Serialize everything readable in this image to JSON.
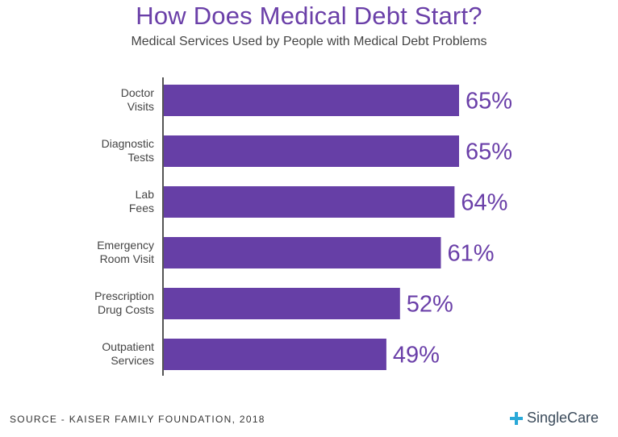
{
  "header": {
    "title": "How Does Medical Debt Start?",
    "subtitle": "Medical Services Used by People with Medical Debt Problems"
  },
  "footer": {
    "source": "SOURCE - KAISER FAMILY FOUNDATION, 2018",
    "brand": "SingleCare",
    "brand_icon": "plus-cross-icon"
  },
  "colors": {
    "bar": "#663fa6",
    "title": "#6a3fa8",
    "axis": "#555555",
    "logo_icon": "#2aa9d8"
  },
  "chart_data": {
    "type": "bar",
    "orientation": "horizontal",
    "title": "How Does Medical Debt Start?",
    "subtitle": "Medical Services Used by People with Medical Debt Problems",
    "categories": [
      [
        "Doctor",
        "Visits"
      ],
      [
        "Diagnostic",
        "Tests"
      ],
      [
        "Lab",
        "Fees"
      ],
      [
        "Emergency",
        "Room Visit"
      ],
      [
        "Prescription",
        "Drug Costs"
      ],
      [
        "Outpatient",
        "Services"
      ]
    ],
    "values": [
      65,
      65,
      64,
      61,
      52,
      49
    ],
    "value_labels": [
      "65%",
      "65%",
      "64%",
      "61%",
      "52%",
      "49%"
    ],
    "xlim": [
      0,
      65
    ],
    "grid": false
  }
}
